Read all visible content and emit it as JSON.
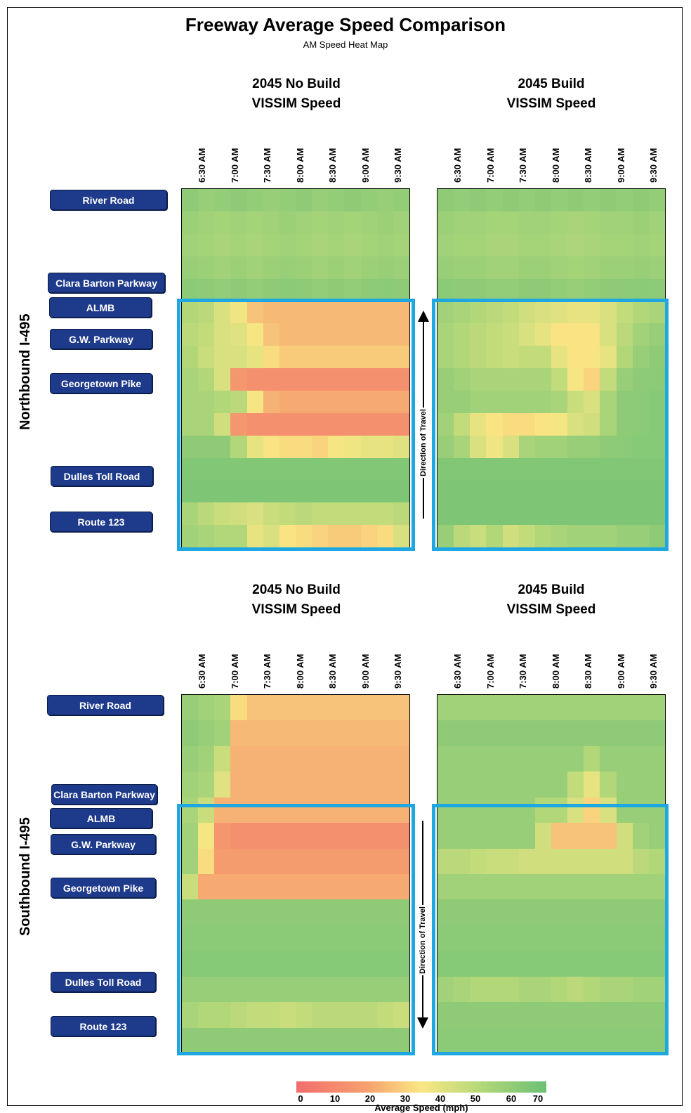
{
  "title": "Freeway Average Speed Comparison",
  "subtitle": "AM Speed Heat Map",
  "panel_titles": {
    "no_build_l1": "2045 No Build",
    "no_build_l2": "VISSIM Speed",
    "build_l1": "2045 Build",
    "build_l2": "VISSIM Speed"
  },
  "direction_label": "Direction of Travel",
  "sections": {
    "northbound": {
      "label": "Northbound I-495",
      "locations": [
        "River Road",
        "Clara Barton Parkway",
        "ALMB",
        "G.W. Parkway",
        "Georgetown Pike",
        "Dulles Toll Road",
        "Route 123"
      ]
    },
    "southbound": {
      "label": "Southbound I-495",
      "locations": [
        "River Road",
        "Clara Barton Parkway",
        "ALMB",
        "G.W. Parkway",
        "Georgetown Pike",
        "Dulles Toll Road",
        "Route 123"
      ]
    }
  },
  "legend": {
    "title": "Average Speed (mph)",
    "ticks": [
      "0",
      "10",
      "20",
      "30",
      "40",
      "50",
      "60",
      "70"
    ],
    "colors": [
      "#f26d6d",
      "#f5a06e",
      "#fae784",
      "#b9d97a",
      "#6cc074"
    ]
  },
  "highlight_color": "#1ea7e0",
  "chart_data": {
    "type": "heatmap",
    "x_labels": [
      "6:30 AM",
      "7:00 AM",
      "7:30 AM",
      "8:00 AM",
      "8:30 AM",
      "9:00 AM",
      "9:30 AM"
    ],
    "units": "mph",
    "color_range": [
      0,
      70
    ],
    "panels": [
      {
        "section": "Northbound I-495",
        "scenario": "2045 No Build VISSIM Speed",
        "values": [
          [
            62,
            60,
            61,
            62,
            61,
            60,
            61,
            62,
            60,
            61,
            62,
            61,
            60,
            61
          ],
          [
            59,
            58,
            57,
            58,
            57,
            58,
            59,
            58,
            57,
            58,
            57,
            58,
            59,
            58
          ],
          [
            58,
            57,
            56,
            57,
            56,
            57,
            58,
            57,
            56,
            57,
            56,
            57,
            58,
            57
          ],
          [
            60,
            59,
            58,
            59,
            58,
            59,
            60,
            59,
            58,
            59,
            58,
            59,
            60,
            59
          ],
          [
            63,
            62,
            61,
            62,
            61,
            62,
            63,
            62,
            61,
            62,
            61,
            62,
            63,
            62
          ],
          [
            54,
            52,
            44,
            38,
            26,
            24,
            24,
            24,
            24,
            24,
            24,
            24,
            24,
            24
          ],
          [
            52,
            50,
            44,
            42,
            36,
            26,
            24,
            24,
            24,
            24,
            24,
            24,
            24,
            24
          ],
          [
            54,
            48,
            44,
            44,
            40,
            32,
            28,
            28,
            28,
            28,
            28,
            28,
            28,
            28
          ],
          [
            56,
            54,
            44,
            14,
            12,
            12,
            12,
            12,
            12,
            12,
            12,
            12,
            12,
            12
          ],
          [
            56,
            56,
            54,
            52,
            36,
            22,
            20,
            20,
            20,
            20,
            20,
            20,
            20,
            20
          ],
          [
            56,
            56,
            46,
            14,
            12,
            12,
            12,
            12,
            12,
            12,
            12,
            12,
            12,
            12
          ],
          [
            62,
            62,
            62,
            54,
            40,
            34,
            32,
            32,
            30,
            36,
            38,
            40,
            40,
            42
          ],
          [
            65,
            65,
            65,
            65,
            65,
            65,
            65,
            65,
            65,
            65,
            65,
            65,
            65,
            65
          ],
          [
            66,
            66,
            66,
            66,
            66,
            66,
            66,
            66,
            66,
            66,
            66,
            66,
            66,
            66
          ],
          [
            56,
            52,
            48,
            46,
            44,
            48,
            50,
            52,
            50,
            50,
            50,
            50,
            50,
            52
          ],
          [
            58,
            56,
            54,
            54,
            40,
            44,
            34,
            32,
            30,
            28,
            28,
            30,
            32,
            44
          ]
        ]
      },
      {
        "section": "Northbound I-495",
        "scenario": "2045 Build VISSIM Speed",
        "values": [
          [
            62,
            61,
            62,
            61,
            62,
            61,
            62,
            61,
            62,
            61,
            62,
            61,
            62,
            61
          ],
          [
            59,
            58,
            58,
            57,
            57,
            58,
            58,
            57,
            56,
            57,
            58,
            58,
            59,
            58
          ],
          [
            58,
            57,
            57,
            56,
            56,
            57,
            57,
            56,
            55,
            56,
            57,
            57,
            58,
            57
          ],
          [
            60,
            59,
            59,
            58,
            58,
            59,
            59,
            58,
            57,
            58,
            59,
            59,
            60,
            59
          ],
          [
            63,
            62,
            62,
            61,
            61,
            62,
            62,
            61,
            60,
            61,
            62,
            62,
            63,
            62
          ],
          [
            58,
            56,
            54,
            52,
            50,
            46,
            44,
            42,
            40,
            40,
            44,
            50,
            54,
            56
          ],
          [
            56,
            54,
            52,
            50,
            48,
            44,
            40,
            34,
            34,
            34,
            44,
            52,
            58,
            60
          ],
          [
            56,
            54,
            52,
            50,
            48,
            50,
            50,
            40,
            34,
            34,
            40,
            54,
            60,
            62
          ],
          [
            60,
            58,
            56,
            56,
            56,
            56,
            56,
            50,
            36,
            30,
            50,
            60,
            62,
            63
          ],
          [
            60,
            60,
            58,
            58,
            58,
            58,
            58,
            56,
            48,
            44,
            56,
            62,
            63,
            64
          ],
          [
            58,
            50,
            40,
            34,
            32,
            32,
            34,
            36,
            44,
            46,
            56,
            62,
            63,
            64
          ],
          [
            60,
            56,
            44,
            38,
            44,
            56,
            58,
            58,
            60,
            60,
            62,
            63,
            64,
            64
          ],
          [
            65,
            65,
            65,
            65,
            65,
            65,
            65,
            65,
            65,
            65,
            65,
            65,
            65,
            65
          ],
          [
            66,
            66,
            66,
            66,
            66,
            66,
            66,
            66,
            66,
            66,
            66,
            66,
            66,
            66
          ],
          [
            66,
            66,
            66,
            66,
            66,
            66,
            66,
            66,
            66,
            66,
            66,
            66,
            66,
            66
          ],
          [
            60,
            52,
            48,
            54,
            46,
            50,
            54,
            56,
            58,
            58,
            58,
            60,
            60,
            62
          ]
        ]
      },
      {
        "section": "Southbound I-495",
        "scenario": "2045 No Build VISSIM Speed",
        "values": [
          [
            60,
            58,
            56,
            32,
            26,
            26,
            26,
            26,
            26,
            26,
            26,
            26,
            26,
            26
          ],
          [
            62,
            60,
            58,
            24,
            24,
            24,
            24,
            24,
            24,
            24,
            24,
            24,
            24,
            24
          ],
          [
            60,
            58,
            48,
            22,
            22,
            22,
            22,
            22,
            22,
            22,
            22,
            22,
            22,
            22
          ],
          [
            58,
            56,
            42,
            22,
            22,
            22,
            22,
            22,
            22,
            22,
            22,
            22,
            22,
            22
          ],
          [
            56,
            48,
            22,
            22,
            22,
            22,
            22,
            22,
            22,
            22,
            22,
            22,
            22,
            22
          ],
          [
            58,
            36,
            14,
            12,
            12,
            12,
            12,
            12,
            12,
            12,
            12,
            12,
            12,
            12
          ],
          [
            58,
            32,
            16,
            16,
            16,
            16,
            16,
            16,
            16,
            16,
            16,
            16,
            16,
            16
          ],
          [
            48,
            20,
            20,
            20,
            20,
            20,
            20,
            20,
            20,
            20,
            20,
            20,
            20,
            20
          ],
          [
            62,
            62,
            62,
            62,
            62,
            62,
            62,
            62,
            62,
            62,
            62,
            62,
            62,
            62
          ],
          [
            63,
            63,
            63,
            63,
            63,
            63,
            63,
            63,
            63,
            63,
            63,
            63,
            63,
            63
          ],
          [
            64,
            64,
            64,
            64,
            64,
            64,
            64,
            64,
            64,
            64,
            64,
            64,
            64,
            64
          ],
          [
            60,
            60,
            60,
            60,
            60,
            60,
            60,
            60,
            60,
            60,
            60,
            60,
            60,
            60
          ],
          [
            56,
            54,
            54,
            52,
            50,
            50,
            48,
            50,
            52,
            52,
            52,
            52,
            50,
            48
          ],
          [
            62,
            62,
            62,
            62,
            62,
            62,
            62,
            62,
            62,
            62,
            62,
            62,
            62,
            62
          ]
        ]
      },
      {
        "section": "Southbound I-495",
        "scenario": "2045 Build VISSIM Speed",
        "values": [
          [
            58,
            58,
            58,
            58,
            58,
            58,
            58,
            58,
            58,
            58,
            58,
            58,
            58,
            58
          ],
          [
            62,
            62,
            62,
            62,
            62,
            62,
            62,
            62,
            62,
            62,
            62,
            62,
            62,
            62
          ],
          [
            60,
            60,
            60,
            60,
            60,
            60,
            60,
            60,
            60,
            54,
            60,
            60,
            60,
            60
          ],
          [
            60,
            60,
            60,
            60,
            60,
            60,
            60,
            60,
            50,
            40,
            54,
            60,
            60,
            60
          ],
          [
            60,
            60,
            60,
            60,
            60,
            60,
            54,
            54,
            44,
            30,
            44,
            60,
            60,
            60
          ],
          [
            60,
            60,
            60,
            60,
            60,
            60,
            46,
            26,
            26,
            26,
            26,
            46,
            58,
            60
          ],
          [
            52,
            52,
            50,
            48,
            48,
            46,
            46,
            46,
            46,
            46,
            46,
            46,
            52,
            54
          ],
          [
            58,
            58,
            58,
            58,
            58,
            58,
            58,
            58,
            58,
            58,
            58,
            58,
            58,
            58
          ],
          [
            62,
            62,
            62,
            62,
            62,
            62,
            62,
            62,
            62,
            62,
            62,
            62,
            62,
            62
          ],
          [
            63,
            63,
            63,
            63,
            63,
            63,
            63,
            63,
            63,
            63,
            63,
            63,
            63,
            63
          ],
          [
            64,
            64,
            64,
            64,
            64,
            64,
            64,
            64,
            64,
            64,
            64,
            64,
            64,
            64
          ],
          [
            58,
            56,
            54,
            54,
            54,
            56,
            56,
            54,
            52,
            54,
            56,
            56,
            58,
            58
          ],
          [
            62,
            62,
            62,
            62,
            62,
            62,
            62,
            62,
            62,
            62,
            62,
            62,
            62,
            62
          ],
          [
            63,
            63,
            63,
            63,
            63,
            63,
            63,
            63,
            63,
            63,
            63,
            63,
            63,
            63
          ]
        ]
      }
    ]
  }
}
